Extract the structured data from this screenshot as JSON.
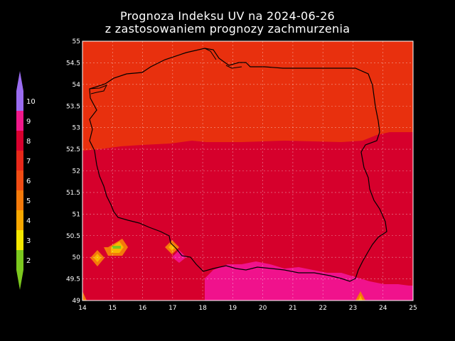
{
  "title_line1": "Prognoza Indeksu UV na 2024-06-26",
  "title_line2": "z zastosowaniem prognozy zachmurzenia",
  "x_ticks": [
    "14",
    "15",
    "16",
    "17",
    "18",
    "19",
    "20",
    "21",
    "22",
    "23",
    "24",
    "25"
  ],
  "y_ticks": [
    "55",
    "54.5",
    "54",
    "53.5",
    "53",
    "52.5",
    "52",
    "51.5",
    "51",
    "50.5",
    "50",
    "49.5",
    "49"
  ],
  "legend": [
    {
      "label": "10",
      "color": "#9a6cf0"
    },
    {
      "label": "9",
      "color": "#f0188a"
    },
    {
      "label": "8",
      "color": "#d8002e"
    },
    {
      "label": "7",
      "color": "#e8281a"
    },
    {
      "label": "6",
      "color": "#f04c14"
    },
    {
      "label": "5",
      "color": "#f47a0a"
    },
    {
      "label": "4",
      "color": "#f8a800"
    },
    {
      "label": "3",
      "color": "#f4e800"
    },
    {
      "label": "2",
      "color": "#7cc81e"
    }
  ],
  "colors": {
    "uv7_zone": "#e8300e",
    "uv8_zone": "#d6002c",
    "uv9_zone": "#f0128c",
    "border": "#000000",
    "grid": "#ffffff"
  }
}
